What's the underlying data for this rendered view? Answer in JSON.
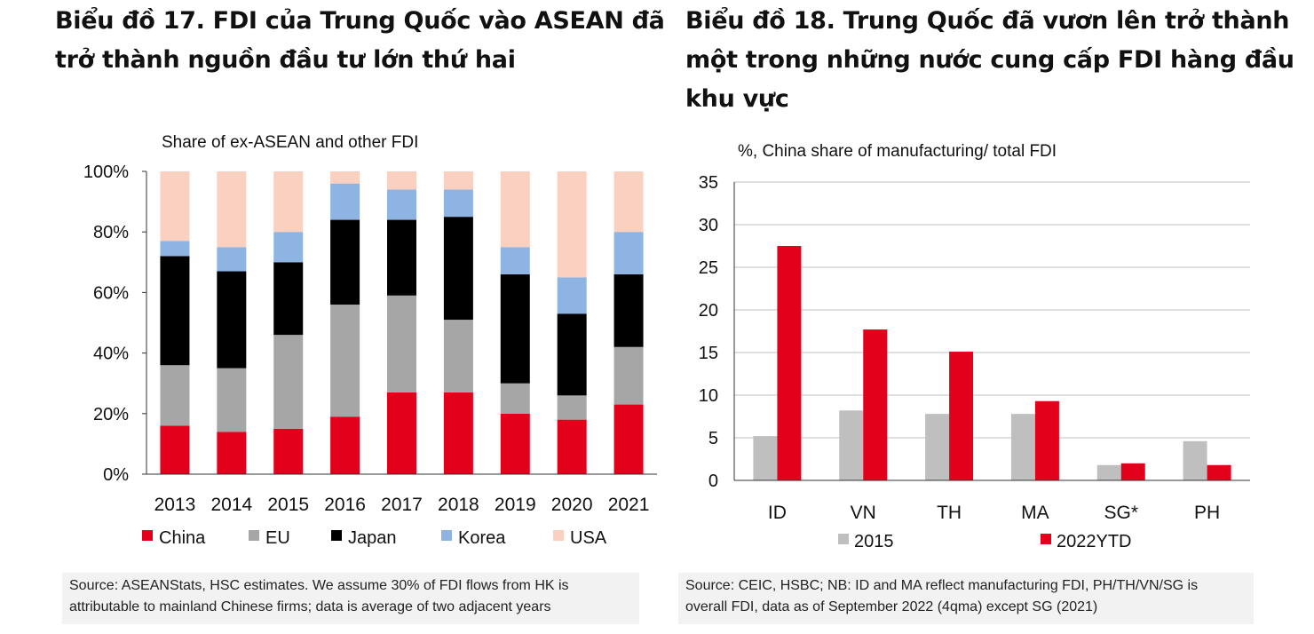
{
  "left_title": {
    "lines": [
      "Biểu đồ 17. FDI của Trung Quốc vào ASEAN đã",
      "trở thành nguồn đầu tư lớn thứ hai"
    ]
  },
  "right_title": {
    "lines": [
      "Biểu đồ 18. Trung Quốc đã vươn lên trở thành",
      "một trong những nước cung cấp FDI hàng đầu",
      "khu vực"
    ]
  },
  "left_source": {
    "lines": [
      "Source: ASEANStats, HSC estimates. We assume 30% of FDI flows from HK is",
      "attributable to mainland Chinese firms; data is average of two adjacent years"
    ]
  },
  "right_source": {
    "lines": [
      "Source: CEIC, HSBC; NB: ID and MA reflect manufacturing FDI, PH/TH/VN/SG is",
      "overall FDI, data as of September 2022 (4qma) except SG (2021)"
    ]
  },
  "chart_data": [
    {
      "type": "bar",
      "stacked": true,
      "title": "Share of ex-ASEAN and other FDI",
      "categories": [
        "2013",
        "2014",
        "2015",
        "2016",
        "2017",
        "2018",
        "2019",
        "2020",
        "2021"
      ],
      "ylim": [
        0,
        100
      ],
      "yticks": [
        0,
        20,
        40,
        60,
        80,
        100
      ],
      "ytick_labels": [
        "0%",
        "20%",
        "40%",
        "60%",
        "80%",
        "100%"
      ],
      "legend_position": "bottom",
      "series": [
        {
          "name": "China",
          "color": "#e3001b",
          "values": [
            16,
            14,
            15,
            19,
            27,
            27,
            20,
            18,
            23
          ]
        },
        {
          "name": "EU",
          "color": "#a6a6a6",
          "values": [
            20,
            21,
            31,
            37,
            32,
            24,
            10,
            8,
            19
          ]
        },
        {
          "name": "Japan",
          "color": "#000000",
          "values": [
            36,
            32,
            24,
            28,
            25,
            34,
            36,
            27,
            24
          ]
        },
        {
          "name": "Korea",
          "color": "#8eb4e3",
          "values": [
            5,
            8,
            10,
            12,
            10,
            9,
            9,
            12,
            14
          ]
        },
        {
          "name": "USA",
          "color": "#fad0c0",
          "values": [
            23,
            25,
            20,
            4,
            6,
            6,
            25,
            35,
            20
          ]
        }
      ]
    },
    {
      "type": "bar",
      "stacked": false,
      "title": "%, China share of manufacturing/  total FDI",
      "categories": [
        "ID",
        "VN",
        "TH",
        "MA",
        "SG*",
        "PH"
      ],
      "ylim": [
        0,
        35
      ],
      "yticks": [
        0,
        5,
        10,
        15,
        20,
        25,
        30,
        35
      ],
      "ytick_labels": [
        "0",
        "5",
        "10",
        "15",
        "20",
        "25",
        "30",
        "35"
      ],
      "grid": true,
      "legend_position": "bottom",
      "series": [
        {
          "name": "2015",
          "color": "#bfbfbf",
          "values": [
            5.2,
            8.2,
            7.8,
            7.8,
            1.8,
            4.6
          ]
        },
        {
          "name": "2022YTD",
          "color": "#e3001b",
          "values": [
            27.5,
            17.7,
            15.1,
            9.3,
            2.0,
            1.8
          ]
        }
      ]
    }
  ]
}
